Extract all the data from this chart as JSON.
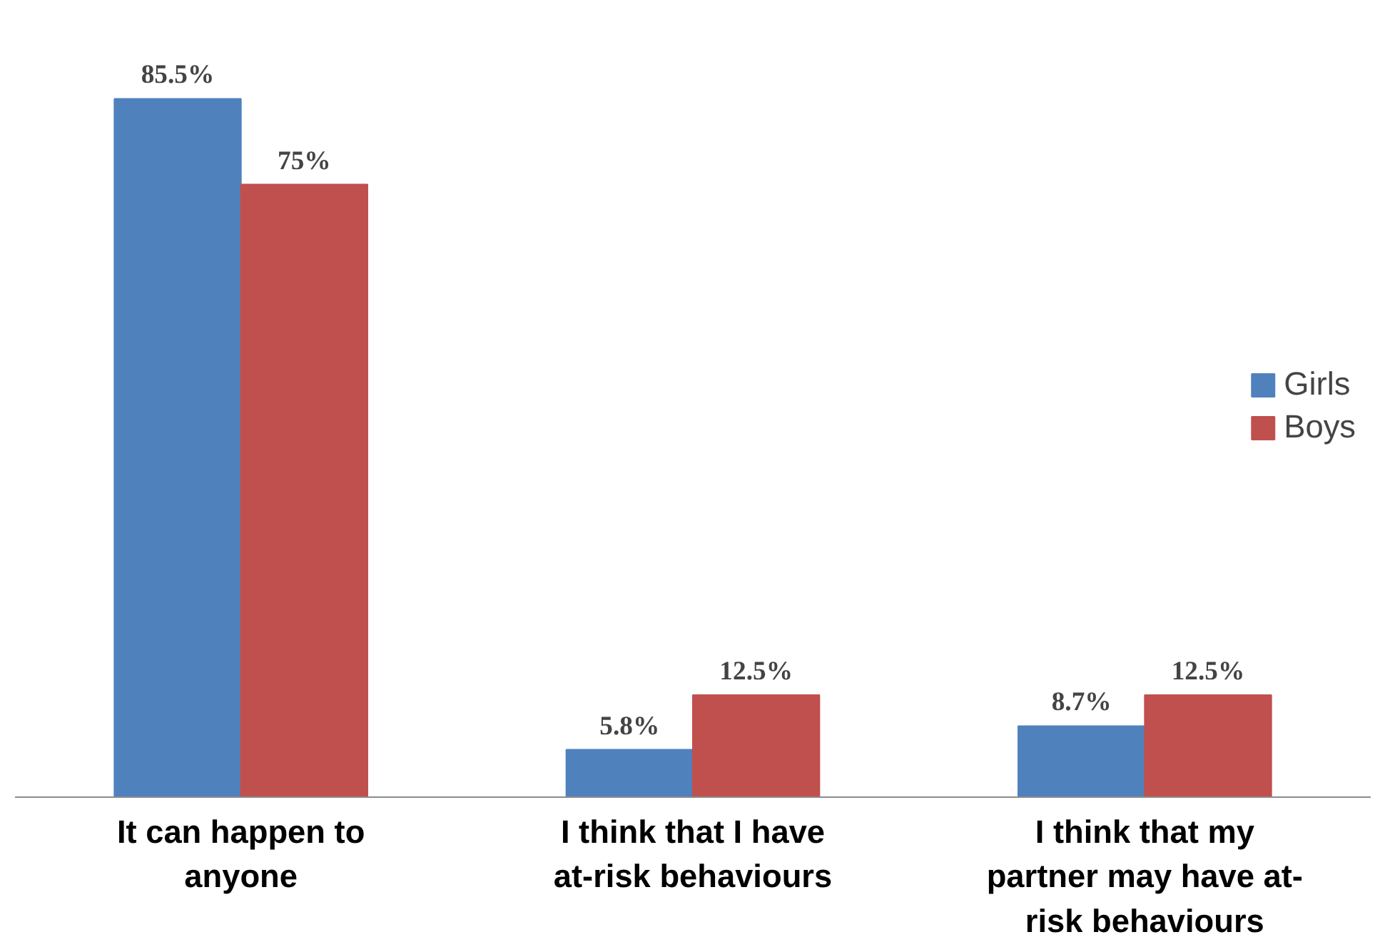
{
  "chart_data": {
    "type": "bar",
    "categories": [
      "It can happen to anyone",
      "I think that I have at-risk behaviours",
      "I think that my partner may have at-risk behaviours"
    ],
    "series": [
      {
        "name": "Girls",
        "color": "#4f81bd",
        "values": [
          85.5,
          5.8,
          8.7
        ],
        "value_labels": [
          "85.5%",
          "5.8%",
          "8.7%"
        ]
      },
      {
        "name": "Boys",
        "color": "#c0504d",
        "values": [
          75,
          12.5,
          12.5
        ],
        "value_labels": [
          "75%",
          "12.5%",
          "12.5%"
        ]
      }
    ],
    "legend": "right",
    "grid": false
  }
}
